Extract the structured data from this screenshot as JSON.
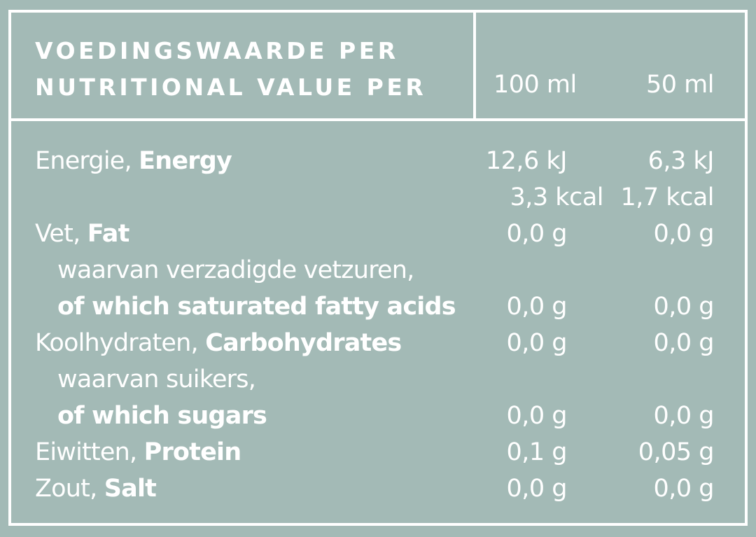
{
  "header": {
    "line1": "VOEDINGSWAARDE PER",
    "line2": "NUTRITIONAL VALUE PER",
    "col_100": "100 ml",
    "col_50": "50 ml"
  },
  "rows": [
    {
      "nl": "Energie, ",
      "en": "Energy",
      "v100": "12,6 kJ",
      "v50": "6,3 kJ"
    },
    {
      "nl": "",
      "en": "",
      "v100": "3,3 kcal",
      "v50": "1,7 kcal"
    },
    {
      "nl": "Vet, ",
      "en": "Fat",
      "v100": "0,0 g",
      "v50": "0,0 g"
    },
    {
      "nl": "waarvan verzadigde vetzuren,",
      "en": "",
      "v100": "",
      "v50": ""
    },
    {
      "nl": "",
      "en": "of which saturated fatty acids",
      "v100": "0,0 g",
      "v50": "0,0 g"
    },
    {
      "nl": "Koolhydraten, ",
      "en": "Carbohydrates",
      "v100": "0,0 g",
      "v50": "0,0 g"
    },
    {
      "nl": "waarvan suikers,",
      "en": "",
      "v100": "",
      "v50": ""
    },
    {
      "nl": "",
      "en": "of which sugars",
      "v100": "0,0 g",
      "v50": "0,0 g"
    },
    {
      "nl": "Eiwitten, ",
      "en": "Protein",
      "v100": "0,1 g",
      "v50": "0,05 g"
    },
    {
      "nl": "Zout, ",
      "en": "Salt",
      "v100": "0,0 g",
      "v50": "0,0 g"
    }
  ]
}
